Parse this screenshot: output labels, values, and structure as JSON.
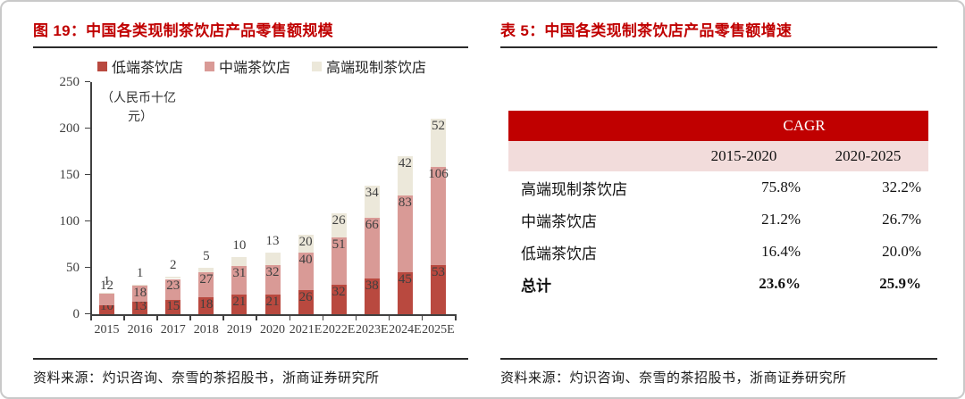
{
  "colors": {
    "title_red": "#c00000",
    "rule_color": "#2b2b2b",
    "frame_border": "#c9c9c9",
    "axis_color": "#404040",
    "label_color": "#3f3f3f",
    "text_color": "#1a1a1a",
    "table_header_bg": "#c00000",
    "table_header_text": "#ffffff",
    "table_subheader_bg": "#f2dcdb"
  },
  "left_panel": {
    "title": "图 19：中国各类现制茶饮店产品零售额规模",
    "source": "资料来源：灼识咨询、奈雪的茶招股书，浙商证券研究所"
  },
  "right_panel": {
    "title": "表 5：中国各类现制茶饮店产品零售额增速",
    "source": "资料来源：灼识咨询、奈雪的茶招股书，浙商证券研究所",
    "table": {
      "header": "CAGR",
      "columns": [
        "2015-2020",
        "2020-2025"
      ],
      "rows": [
        {
          "label": "高端现制茶饮店",
          "values": [
            "75.8%",
            "32.2%"
          ]
        },
        {
          "label": "中端茶饮店",
          "values": [
            "21.2%",
            "26.7%"
          ]
        },
        {
          "label": "低端茶饮店",
          "values": [
            "16.4%",
            "20.0%"
          ]
        },
        {
          "label": "总计",
          "values": [
            "23.6%",
            "25.9%"
          ]
        }
      ]
    }
  },
  "chart_data": {
    "type": "bar",
    "stacked": true,
    "title": "中国各类现制茶饮店产品零售额规模",
    "unit_label_lines": [
      "（人民币十亿",
      "元）"
    ],
    "categories": [
      "2015",
      "2016",
      "2017",
      "2018",
      "2019",
      "2020",
      "2021E",
      "2022E",
      "2023E",
      "2024E",
      "2025E"
    ],
    "series": [
      {
        "name": "低端茶饮店",
        "color": "#b9493f",
        "values": [
          10,
          13,
          15,
          18,
          21,
          21,
          26,
          32,
          38,
          45,
          53
        ]
      },
      {
        "name": "中端茶饮店",
        "color": "#d99a96",
        "values": [
          12,
          18,
          23,
          27,
          31,
          32,
          40,
          51,
          66,
          83,
          106
        ]
      },
      {
        "name": "高端现制茶饮店",
        "color": "#ece8da",
        "values": [
          1,
          1,
          2,
          5,
          10,
          13,
          20,
          26,
          34,
          42,
          52
        ]
      }
    ],
    "ylim": [
      0,
      250
    ],
    "ytick_interval": 50,
    "grid": false,
    "legend_position": "top-inside"
  }
}
